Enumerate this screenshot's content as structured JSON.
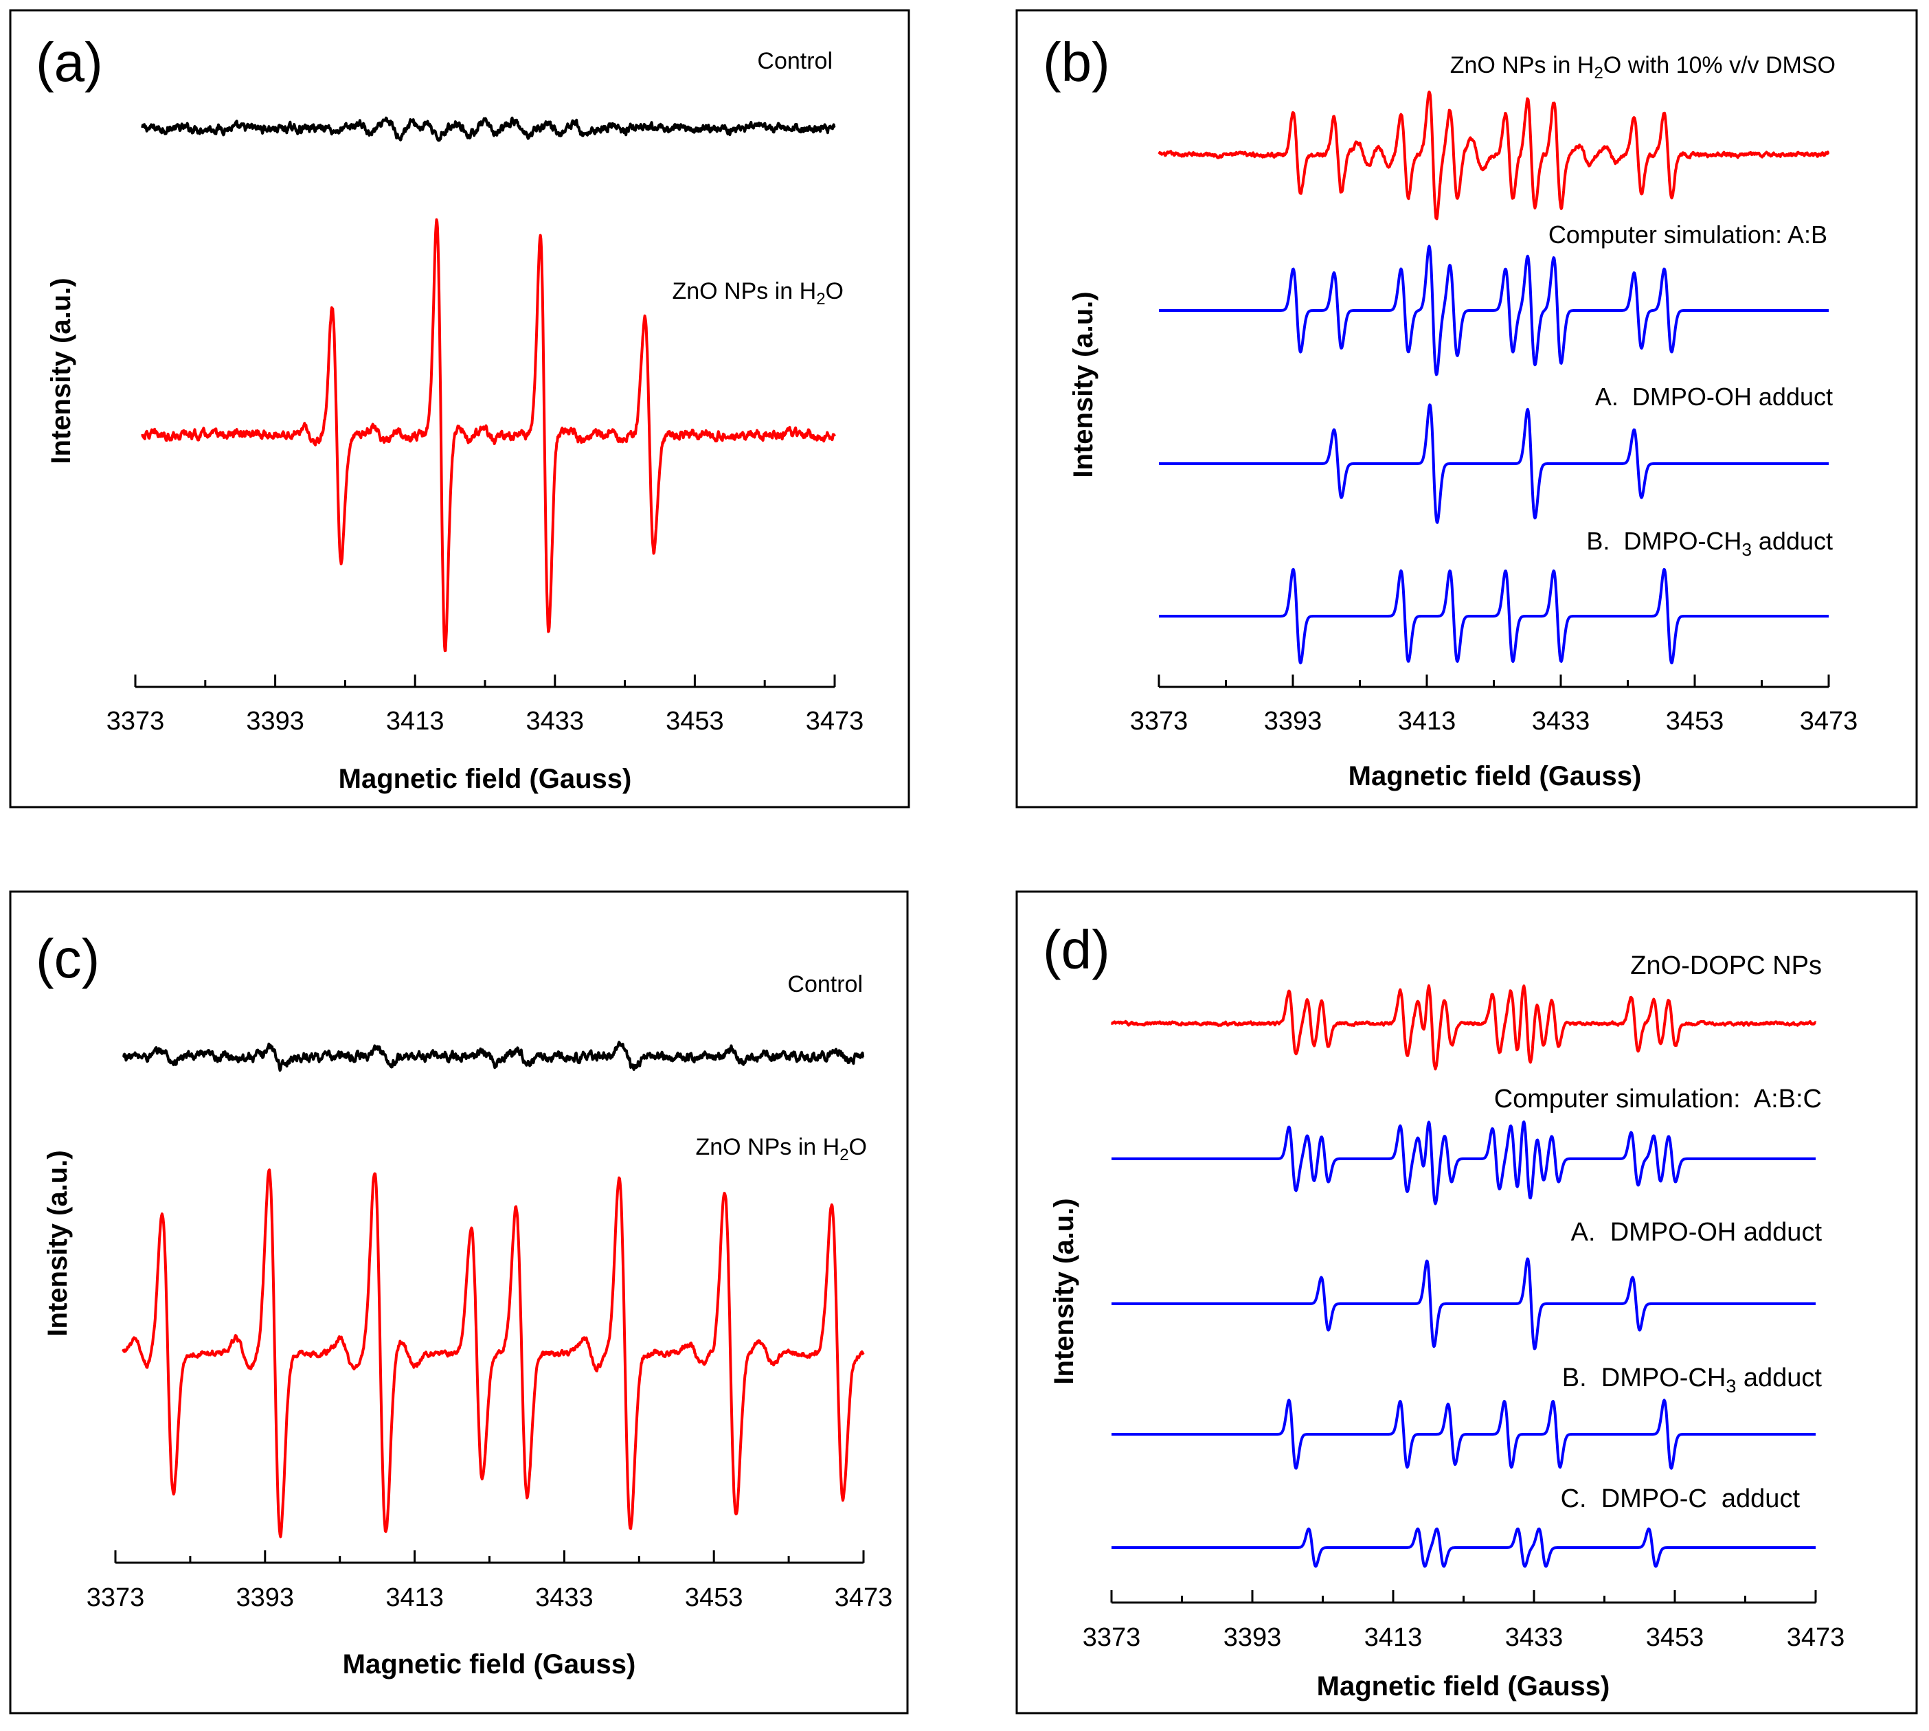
{
  "colors": {
    "black": "#000000",
    "red": "#ff0000",
    "blue": "#0000ff"
  },
  "chart_data": [
    {
      "panel": "(a)",
      "type": "line",
      "xlabel": "Magnetic field (Gauss)",
      "ylabel": "Intensity (a.u.)",
      "xlim": [
        3373,
        3473
      ],
      "xticks": [
        3373,
        3393,
        3413,
        3433,
        3453,
        3473
      ],
      "series": [
        {
          "name": "Control",
          "color": "#000000",
          "x_range": [
            3374,
            3473
          ],
          "noise": 0.12,
          "lines": [
            [
              3400.8,
              0.06,
              0.8
            ],
            [
              3405.8,
              0.14,
              0.8
            ],
            [
              3409.9,
              0.18,
              0.8
            ],
            [
              3413.4,
              0.15,
              0.8
            ],
            [
              3415.3,
              0.25,
              0.8
            ],
            [
              3419.9,
              0.17,
              0.8
            ],
            [
              3423.6,
              0.14,
              0.8
            ],
            [
              3428.0,
              0.18,
              0.8
            ],
            [
              3432.8,
              0.14,
              0.8
            ],
            [
              3436.4,
              0.15,
              0.8
            ],
            [
              3441.9,
              0.08,
              0.8
            ],
            [
              3445.0,
              0.04,
              0.8
            ]
          ]
        },
        {
          "name": "ZnO NPs in H2O",
          "color": "#ff0000",
          "x_range": [
            3374,
            3473
          ],
          "noise": 0.022,
          "lines": [
            [
              3401.8,
              0.59,
              0.65
            ],
            [
              3416.7,
              1.0,
              0.6
            ],
            [
              3431.5,
              0.92,
              0.6
            ],
            [
              3446.5,
              0.55,
              0.65
            ],
            [
              3397.8,
              0.03,
              0.8
            ],
            [
              3408.0,
              0.03,
              0.8
            ],
            [
              3411.0,
              0.02,
              0.8
            ],
            [
              3420.0,
              0.03,
              0.8
            ],
            [
              3423.5,
              0.03,
              0.8
            ],
            [
              3436.0,
              0.03,
              0.8
            ],
            [
              3442.0,
              0.03,
              0.8
            ]
          ]
        }
      ]
    },
    {
      "panel": "(b)",
      "type": "line",
      "xlabel": "Magnetic field (Gauss)",
      "ylabel": "Intensity (a.u.)",
      "xlim": [
        3373,
        3473
      ],
      "xticks": [
        3373,
        3393,
        3413,
        3433,
        3453,
        3473
      ],
      "series": [
        {
          "name": "ZnO NPs in H2O with 10% v/v DMSO",
          "color": "#ff0000",
          "x_range": [
            3373,
            3473
          ],
          "noise": 0.03,
          "lines": [
            [
              3393.6,
              0.55,
              0.55
            ],
            [
              3399.7,
              0.5,
              0.55
            ],
            [
              3409.7,
              0.55,
              0.55
            ],
            [
              3413.9,
              0.85,
              0.55
            ],
            [
              3417.0,
              0.6,
              0.55
            ],
            [
              3425.3,
              0.55,
              0.55
            ],
            [
              3428.6,
              0.72,
              0.55
            ],
            [
              3432.5,
              0.7,
              0.55
            ],
            [
              3444.5,
              0.5,
              0.55
            ],
            [
              3449.0,
              0.55,
              0.55
            ],
            [
              3403.5,
              0.15,
              0.8
            ],
            [
              3406.5,
              0.12,
              0.8
            ],
            [
              3420.5,
              0.2,
              0.8
            ],
            [
              3436.5,
              0.12,
              0.8
            ],
            [
              3440.5,
              0.1,
              0.8
            ]
          ]
        },
        {
          "name": "Computer simulation: A:B",
          "color": "#0000ff",
          "x_range": [
            3373,
            3473
          ],
          "noise": 0,
          "lines": [
            [
              3393.6,
              0.55,
              0.55
            ],
            [
              3399.7,
              0.5,
              0.55
            ],
            [
              3409.7,
              0.55,
              0.55
            ],
            [
              3413.9,
              0.85,
              0.55
            ],
            [
              3417.0,
              0.6,
              0.55
            ],
            [
              3425.3,
              0.55,
              0.55
            ],
            [
              3428.6,
              0.72,
              0.55
            ],
            [
              3432.5,
              0.7,
              0.55
            ],
            [
              3444.5,
              0.5,
              0.55
            ],
            [
              3449.0,
              0.55,
              0.55
            ]
          ]
        },
        {
          "name": "A.  DMPO-OH adduct",
          "color": "#0000ff",
          "x_range": [
            3373,
            3473
          ],
          "noise": 0,
          "lines": [
            [
              3399.7,
              0.45,
              0.55
            ],
            [
              3414.0,
              0.78,
              0.55
            ],
            [
              3428.6,
              0.72,
              0.55
            ],
            [
              3444.5,
              0.45,
              0.55
            ]
          ]
        },
        {
          "name": "B.  DMPO-CH3 adduct",
          "color": "#0000ff",
          "x_range": [
            3373,
            3473
          ],
          "noise": 0,
          "lines": [
            [
              3393.6,
              0.62,
              0.55
            ],
            [
              3409.7,
              0.6,
              0.55
            ],
            [
              3417.0,
              0.6,
              0.55
            ],
            [
              3425.3,
              0.6,
              0.55
            ],
            [
              3432.5,
              0.6,
              0.55
            ],
            [
              3449.0,
              0.62,
              0.55
            ]
          ]
        }
      ]
    },
    {
      "panel": "(c)",
      "type": "line",
      "xlabel": "Magnetic field (Gauss)",
      "ylabel": "Intensity (a.u.)",
      "xlim": [
        3373,
        3473
      ],
      "xticks": [
        3373,
        3393,
        3413,
        3433,
        3453,
        3473
      ],
      "series": [
        {
          "name": "Control",
          "color": "#000000",
          "x_range": [
            3374,
            3473
          ],
          "noise": 0.12,
          "lines": [
            [
              3380.0,
              0.14,
              0.8
            ],
            [
              3394.5,
              0.23,
              0.8
            ],
            [
              3409.0,
              0.2,
              0.8
            ],
            [
              3423.0,
              0.14,
              0.8
            ],
            [
              3427.5,
              0.17,
              0.8
            ],
            [
              3441.5,
              0.27,
              0.8
            ],
            [
              3456.0,
              0.17,
              0.8
            ],
            [
              3470.0,
              0.12,
              0.8
            ]
          ]
        },
        {
          "name": "ZnO NPs in H2O",
          "color": "#ff0000",
          "x_range": [
            3374,
            3473
          ],
          "noise": 0.015,
          "lines": [
            [
              3380.0,
              0.68,
              0.75
            ],
            [
              3394.3,
              0.88,
              0.75
            ],
            [
              3408.4,
              0.88,
              0.75
            ],
            [
              3421.3,
              0.61,
              0.75
            ],
            [
              3427.3,
              0.7,
              0.75
            ],
            [
              3441.1,
              0.85,
              0.75
            ],
            [
              3455.2,
              0.79,
              0.75
            ],
            [
              3469.5,
              0.71,
              0.75
            ],
            [
              3376.5,
              0.06,
              0.9
            ],
            [
              3390.0,
              0.07,
              0.9
            ],
            [
              3404.0,
              0.07,
              0.9
            ],
            [
              3412.0,
              0.06,
              0.9
            ],
            [
              3436.5,
              0.07,
              0.9
            ],
            [
              3450.5,
              0.05,
              0.9
            ],
            [
              3460.0,
              0.05,
              0.9
            ]
          ]
        }
      ]
    },
    {
      "panel": "(d)",
      "type": "line",
      "xlabel": "Magnetic field (Gauss)",
      "ylabel": "Intensity (a.u.)",
      "xlim": [
        3373,
        3473
      ],
      "xticks": [
        3373,
        3393,
        3413,
        3433,
        3453,
        3473
      ],
      "series": [
        {
          "name": "ZnO-DOPC NPs",
          "color": "#ff0000",
          "x_range": [
            3373,
            3473
          ],
          "noise": 0.03,
          "lines": [
            [
              3398.7,
              0.58,
              0.5
            ],
            [
              3401.3,
              0.42,
              0.5
            ],
            [
              3403.3,
              0.42,
              0.5
            ],
            [
              3414.5,
              0.6,
              0.5
            ],
            [
              3417.0,
              0.38,
              0.5
            ],
            [
              3418.5,
              0.82,
              0.5
            ],
            [
              3420.8,
              0.42,
              0.5
            ],
            [
              3427.6,
              0.55,
              0.5
            ],
            [
              3430.2,
              0.6,
              0.5
            ],
            [
              3432.0,
              0.75,
              0.5
            ],
            [
              3433.9,
              0.4,
              0.5
            ],
            [
              3436.0,
              0.42,
              0.5
            ],
            [
              3447.3,
              0.48,
              0.5
            ],
            [
              3450.5,
              0.42,
              0.5
            ],
            [
              3452.6,
              0.42,
              0.5
            ]
          ]
        },
        {
          "name": "Computer simulation:  A:B:C",
          "color": "#0000ff",
          "x_range": [
            3373,
            3473
          ],
          "noise": 0,
          "lines": [
            [
              3398.7,
              0.58,
              0.5
            ],
            [
              3401.3,
              0.42,
              0.5
            ],
            [
              3403.3,
              0.42,
              0.5
            ],
            [
              3414.5,
              0.6,
              0.5
            ],
            [
              3417.0,
              0.38,
              0.5
            ],
            [
              3418.5,
              0.82,
              0.5
            ],
            [
              3420.8,
              0.42,
              0.5
            ],
            [
              3427.6,
              0.55,
              0.5
            ],
            [
              3430.2,
              0.6,
              0.5
            ],
            [
              3432.0,
              0.75,
              0.5
            ],
            [
              3433.9,
              0.4,
              0.5
            ],
            [
              3436.0,
              0.42,
              0.5
            ],
            [
              3447.3,
              0.48,
              0.5
            ],
            [
              3450.5,
              0.42,
              0.5
            ],
            [
              3452.6,
              0.42,
              0.5
            ]
          ]
        },
        {
          "name": "A.  DMPO-OH adduct",
          "color": "#0000ff",
          "x_range": [
            3373,
            3473
          ],
          "noise": 0,
          "lines": [
            [
              3403.3,
              0.48,
              0.5
            ],
            [
              3418.3,
              0.78,
              0.5
            ],
            [
              3432.6,
              0.82,
              0.5
            ],
            [
              3447.5,
              0.48,
              0.5
            ]
          ]
        },
        {
          "name": "B.  DMPO-CH3 adduct",
          "color": "#0000ff",
          "x_range": [
            3373,
            3473
          ],
          "noise": 0,
          "lines": [
            [
              3398.7,
              0.62,
              0.5
            ],
            [
              3414.5,
              0.6,
              0.5
            ],
            [
              3421.3,
              0.55,
              0.5
            ],
            [
              3429.3,
              0.6,
              0.5
            ],
            [
              3436.2,
              0.6,
              0.5
            ],
            [
              3452.0,
              0.62,
              0.5
            ]
          ]
        },
        {
          "name": "C.  DMPO-C  adduct",
          "color": "#0000ff",
          "x_range": [
            3373,
            3473
          ],
          "noise": 0,
          "lines": [
            [
              3401.5,
              0.42,
              0.5
            ],
            [
              3417.0,
              0.42,
              0.5
            ],
            [
              3419.7,
              0.42,
              0.5
            ],
            [
              3431.2,
              0.42,
              0.5
            ],
            [
              3434.2,
              0.42,
              0.5
            ],
            [
              3449.8,
              0.42,
              0.5
            ]
          ]
        }
      ]
    }
  ]
}
